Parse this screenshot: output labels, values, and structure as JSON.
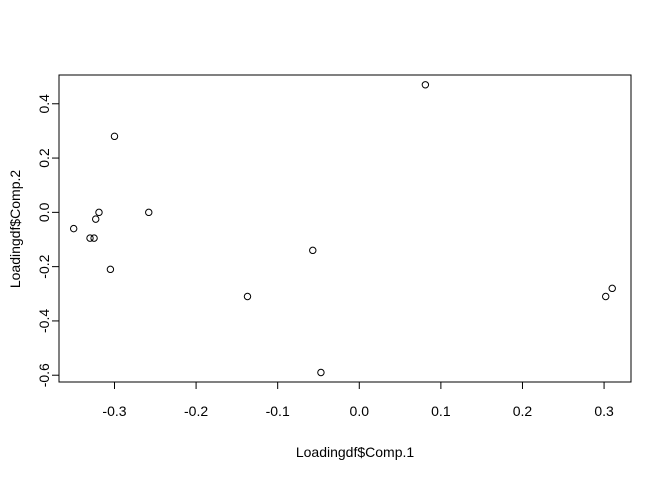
{
  "chart_data": {
    "type": "scatter",
    "title": "",
    "xlabel": "Loadingdf$Comp.1",
    "ylabel": "Loadingdf$Comp.2",
    "xlim": [
      -0.368,
      0.333
    ],
    "ylim": [
      -0.625,
      0.506
    ],
    "xticks": [
      -0.3,
      -0.2,
      -0.1,
      0.0,
      0.1,
      0.2,
      0.3
    ],
    "xtick_labels": [
      "-0.3",
      "-0.2",
      "-0.1",
      "0.0",
      "0.1",
      "0.2",
      "0.3"
    ],
    "yticks": [
      -0.6,
      -0.4,
      -0.2,
      0.0,
      0.2,
      0.4
    ],
    "ytick_labels": [
      "-0.6",
      "-0.4",
      "-0.2",
      "0.0",
      "0.2",
      "0.4"
    ],
    "grid": false,
    "points": [
      {
        "x": -0.35,
        "y": -0.06
      },
      {
        "x": -0.33,
        "y": -0.095
      },
      {
        "x": -0.325,
        "y": -0.095
      },
      {
        "x": -0.323,
        "y": -0.025
      },
      {
        "x": -0.319,
        "y": 0.0
      },
      {
        "x": -0.305,
        "y": -0.21
      },
      {
        "x": -0.3,
        "y": 0.28
      },
      {
        "x": -0.258,
        "y": 0.0
      },
      {
        "x": -0.137,
        "y": -0.31
      },
      {
        "x": -0.057,
        "y": -0.14
      },
      {
        "x": -0.047,
        "y": -0.59
      },
      {
        "x": 0.081,
        "y": 0.47
      },
      {
        "x": 0.302,
        "y": -0.31
      },
      {
        "x": 0.31,
        "y": -0.28
      }
    ]
  }
}
